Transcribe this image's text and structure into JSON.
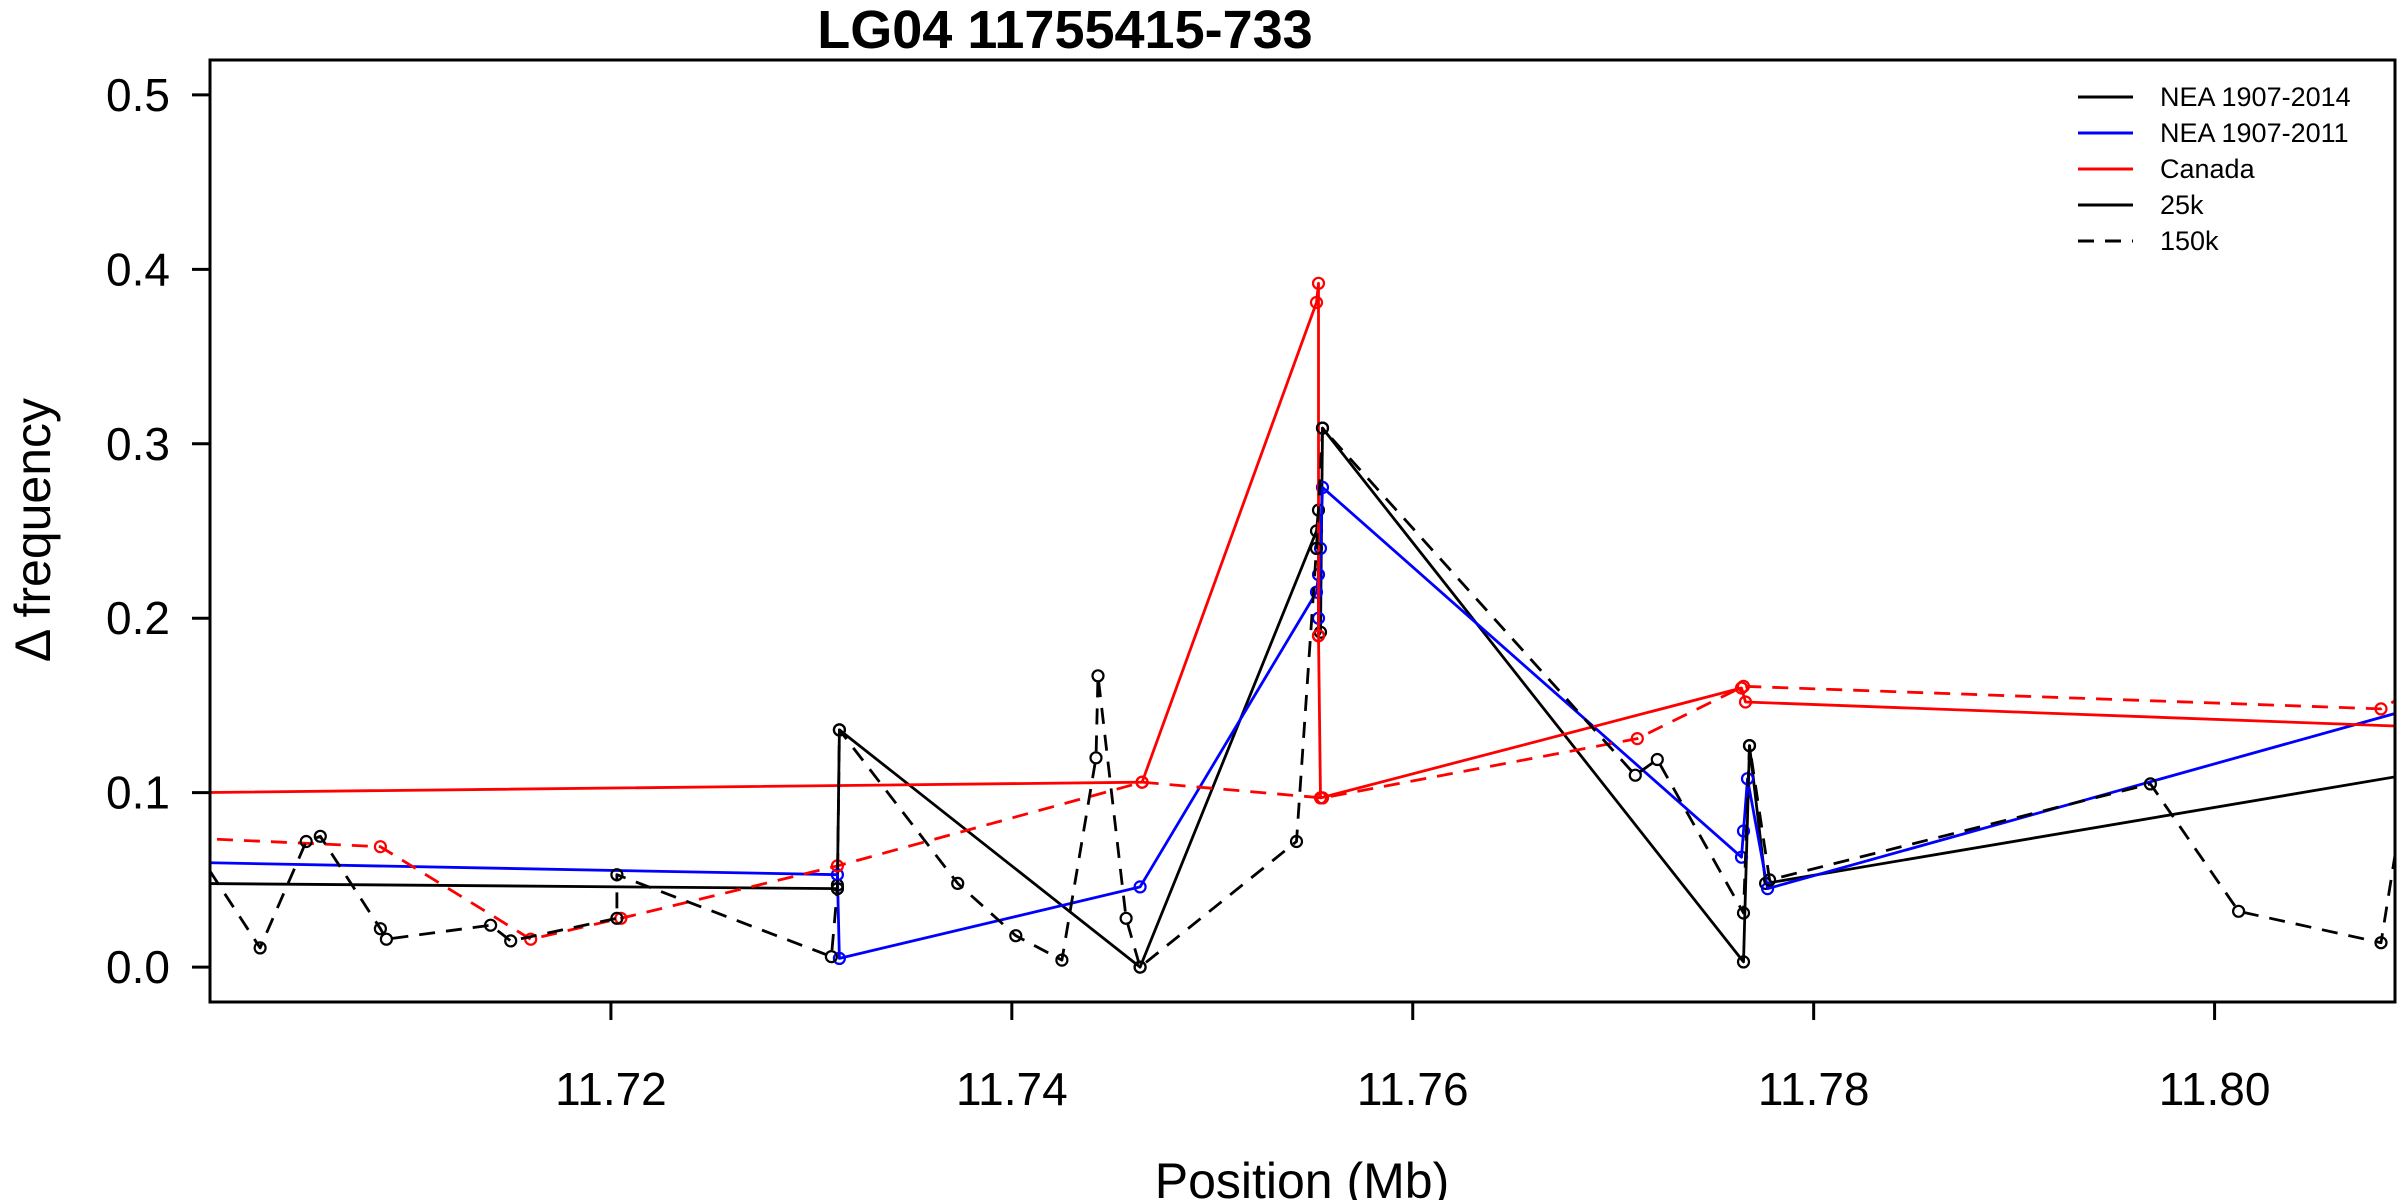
{
  "chart_data": {
    "type": "line",
    "title": "LG04 11755415-733",
    "xlabel": "Position (Mb)",
    "ylabel": "Δ frequency",
    "xlim": [
      11.7,
      11.809
    ],
    "ylim": [
      -0.02,
      0.52
    ],
    "x_ticks": [
      "11.72",
      "11.74",
      "11.76",
      "11.78",
      "11.80"
    ],
    "x_tick_values": [
      11.72,
      11.74,
      11.76,
      11.78,
      11.8
    ],
    "y_ticks": [
      "0.0",
      "0.1",
      "0.2",
      "0.3",
      "0.4",
      "0.5"
    ],
    "y_tick_values": [
      0.0,
      0.1,
      0.2,
      0.3,
      0.4,
      0.5
    ],
    "grid": false,
    "legend_position": "top-right",
    "legend": [
      {
        "label": "NEA 1907-2014",
        "color": "#000000",
        "dash": "solid"
      },
      {
        "label": "NEA 1907-2011",
        "color": "#0000ff",
        "dash": "solid"
      },
      {
        "label": "Canada",
        "color": "#ff0000",
        "dash": "solid"
      },
      {
        "label": "25k",
        "color": "#000000",
        "dash": "solid"
      },
      {
        "label": "150k",
        "color": "#000000",
        "dash": "dashed"
      }
    ],
    "series": [
      {
        "name": "NEA 1907-2014 25k",
        "color": "#000000",
        "dash": "solid",
        "clip_edges": true,
        "x": [
          11.699,
          11.7313,
          11.7313,
          11.7314,
          11.7464,
          11.7552,
          11.7553,
          11.7553,
          11.7554,
          11.7555,
          11.7765,
          11.7768,
          11.7776,
          11.8095
        ],
        "y": [
          0.048,
          0.045,
          0.047,
          0.136,
          0.0,
          0.25,
          0.262,
          0.19,
          0.192,
          0.309,
          0.003,
          0.127,
          0.048,
          0.11
        ]
      },
      {
        "name": "NEA 1907-2011 25k",
        "color": "#0000ff",
        "dash": "solid",
        "clip_edges": true,
        "x": [
          11.699,
          11.7313,
          11.7314,
          11.7464,
          11.7552,
          11.7553,
          11.7553,
          11.7554,
          11.7555,
          11.7764,
          11.7765,
          11.7767,
          11.7777,
          11.8095
        ],
        "y": [
          0.06,
          0.053,
          0.005,
          0.046,
          0.215,
          0.225,
          0.2,
          0.24,
          0.275,
          0.063,
          0.078,
          0.108,
          0.045,
          0.147
        ]
      },
      {
        "name": "Canada 25k",
        "color": "#ff0000",
        "dash": "solid",
        "clip_edges": true,
        "x": [
          11.699,
          11.7465,
          11.7552,
          11.7553,
          11.7553,
          11.7554,
          11.7764,
          11.7766,
          11.8095
        ],
        "y": [
          0.1,
          0.106,
          0.381,
          0.392,
          0.19,
          0.097,
          0.16,
          0.152,
          0.138
        ]
      },
      {
        "name": "Canada 150k",
        "color": "#ff0000",
        "dash": "dashed",
        "clip_edges": true,
        "x": [
          11.699,
          11.7085,
          11.716,
          11.7205,
          11.7313,
          11.7465,
          11.7555,
          11.7712,
          11.7765,
          11.8083,
          11.8095
        ],
        "y": [
          0.074,
          0.069,
          0.016,
          0.028,
          0.058,
          0.106,
          0.097,
          0.131,
          0.161,
          0.148,
          0.156
        ]
      },
      {
        "name": "NEA 1907-2014 150k",
        "color": "#000000",
        "dash": "dashed",
        "clip_edges": true,
        "x": [
          11.7,
          11.7025,
          11.7048,
          11.7055,
          11.7085,
          11.7088,
          11.714,
          11.715,
          11.7203,
          11.7203,
          11.731,
          11.7313,
          11.7314,
          11.7373,
          11.7402,
          11.7425,
          11.7442,
          11.7443,
          11.7457,
          11.7464,
          11.7542,
          11.7552,
          11.7555,
          11.7711,
          11.7722,
          11.7765,
          11.7768,
          11.7778,
          11.7968,
          11.8012,
          11.8083,
          11.8095
        ],
        "y": [
          0.055,
          0.011,
          0.072,
          0.075,
          0.022,
          0.016,
          0.024,
          0.015,
          0.028,
          0.053,
          0.006,
          0.045,
          0.136,
          0.048,
          0.018,
          0.004,
          0.12,
          0.167,
          0.028,
          0.0,
          0.072,
          0.24,
          0.309,
          0.11,
          0.119,
          0.031,
          0.127,
          0.05,
          0.105,
          0.032,
          0.014,
          0.1
        ]
      }
    ]
  }
}
